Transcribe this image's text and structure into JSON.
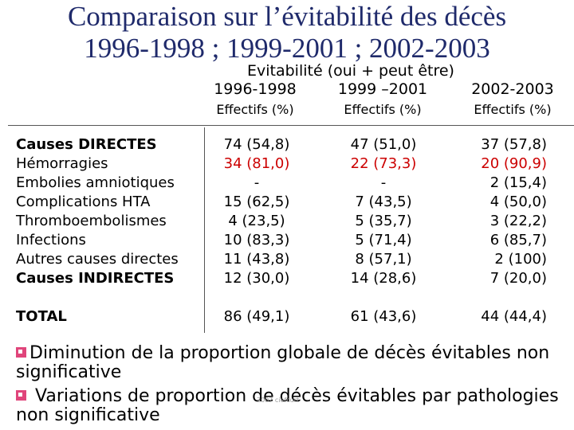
{
  "title": {
    "line1": "Comparaison sur l’évitabilité des décès",
    "line2": "1996-1998   ;  1999-2001  ;  2002-2003"
  },
  "subtitle": "Evitabilité (oui + peut être)",
  "columns": [
    {
      "period": "1996-1998",
      "unit": "Effectifs (%)"
    },
    {
      "period": "1999 –2001",
      "unit": "Effectifs (%)"
    },
    {
      "period": "2002-2003",
      "unit": "Effectifs (%)"
    }
  ],
  "rows": [
    {
      "label": "Causes DIRECTES",
      "values": [
        "74 (54,8)",
        "47 (51,0)",
        "37 (57,8)"
      ]
    },
    {
      "label": "Hémorragies",
      "values": [
        "34 (81,0)",
        "22 (73,3)",
        "20 (90,9)"
      ]
    },
    {
      "label": "Embolies amniotiques",
      "values": [
        "-",
        "-",
        "2 (15,4)"
      ]
    },
    {
      "label": "Complications HTA",
      "values": [
        "15 (62,5)",
        "7 (43,5)",
        "4 (50,0)"
      ]
    },
    {
      "label": "Thromboembolismes",
      "values": [
        "4 (23,5)",
        "5 (35,7)",
        "3 (22,2)"
      ]
    },
    {
      "label": "Infections",
      "values": [
        "10 (83,3)",
        "5 (71,4)",
        "6 (85,7)"
      ]
    },
    {
      "label": "Autres causes directes",
      "values": [
        "11 (43,8)",
        "8 (57,1)",
        "2 (100)"
      ]
    },
    {
      "label": "Causes INDIRECTES",
      "values": [
        "12 (30,0)",
        "14 (28,6)",
        "7 (20,0)"
      ]
    }
  ],
  "total": {
    "label": "TOTAL",
    "values": [
      "86 (49,1)",
      "61 (43,6)",
      "44 (44,4)"
    ]
  },
  "bullets": [
    {
      "text": "Diminution de la proportion globale de décès évitables non significative"
    },
    {
      "text": "Variations de proportion de décès évitables par pathologies non significative"
    }
  ],
  "footer_mark": "2007 ciefcurt",
  "colors": {
    "title": "#1f2a6b",
    "highlight": "#cc0000",
    "bullet": "#e0457b"
  }
}
